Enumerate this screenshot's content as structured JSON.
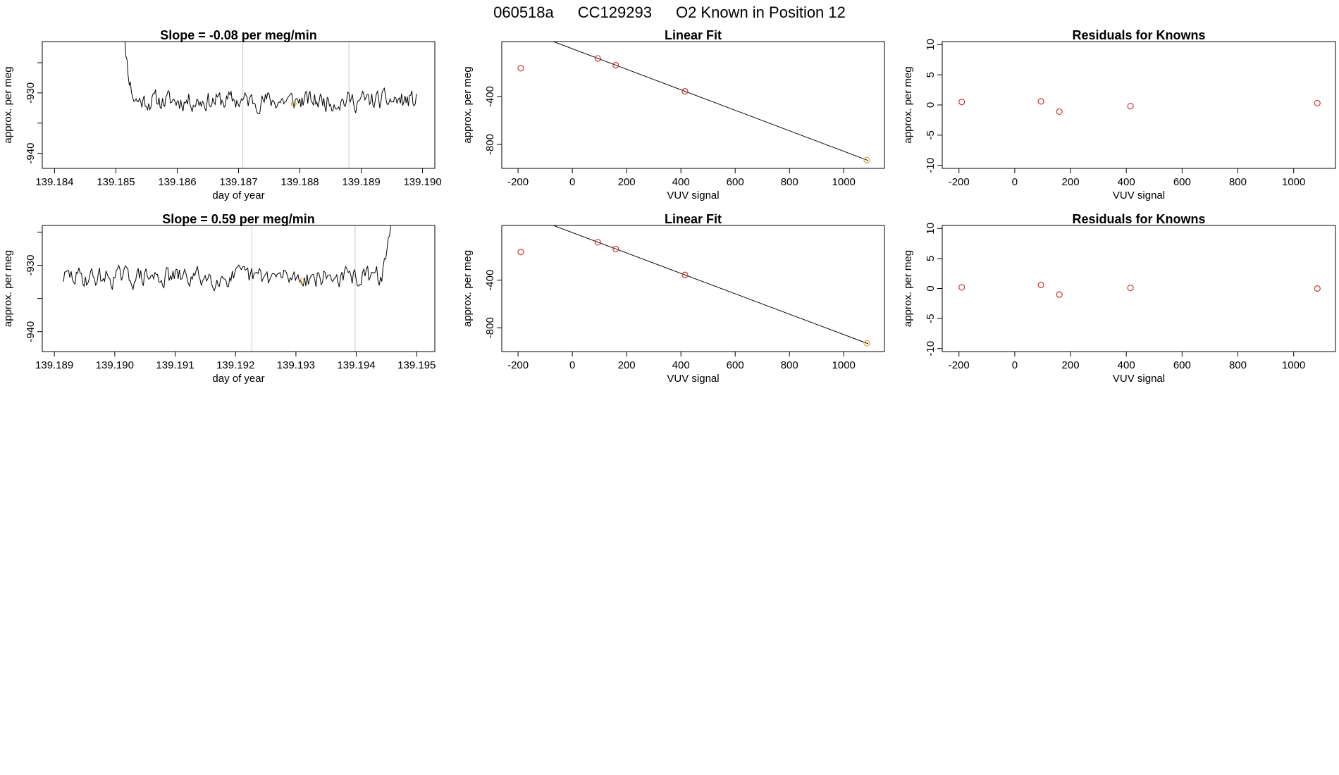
{
  "header": {
    "run_id": "060518a",
    "tank_id": "CC129293",
    "description": "O2 Known in Position  12"
  },
  "colors": {
    "trace": "#000000",
    "marker_orange": "#e6a23c",
    "marker_red": "#cc3333",
    "fit_line": "#000000",
    "guide_line": "#c8c8c8"
  },
  "chart_data": [
    {
      "id": "trace-1",
      "type": "line",
      "title": "Slope =  -0.08  per meg/min",
      "xlabel": "day of year",
      "ylabel": "approx. per meg",
      "xlim": [
        139.1838,
        139.1902
      ],
      "ylim": [
        -942.5,
        -921.5
      ],
      "xticks": [
        139.184,
        139.185,
        139.186,
        139.187,
        139.188,
        139.189,
        139.19
      ],
      "xtick_labels": [
        "139.184",
        "139.185",
        "139.186",
        "139.187",
        "139.188",
        "139.189",
        "139.190"
      ],
      "yticks": [
        -940,
        -935,
        -930,
        -925
      ],
      "ytick_labels": [
        "-940",
        "",
        "-930",
        ""
      ],
      "x_start": 139.18505,
      "x_end": 139.1899,
      "mean": -931.3,
      "noise": 1.6,
      "initial_offset": 12,
      "seed": 11,
      "vlines": [
        139.18707,
        139.1888
      ],
      "highlight": {
        "x": 139.1879,
        "y": -931.8
      }
    },
    {
      "id": "fit-1",
      "type": "scatter",
      "title": "Linear Fit",
      "xlabel": "VUV signal",
      "ylabel": "approx. per meg",
      "xlim": [
        -260,
        1150
      ],
      "ylim": [
        -1000,
        60
      ],
      "xticks": [
        -200,
        0,
        200,
        400,
        600,
        800,
        1000
      ],
      "yticks": [
        -800,
        -400
      ],
      "line": {
        "x0": -230,
        "x1": 1090,
        "slope": -0.8571,
        "intercept": 0
      },
      "x": [
        -190,
        94,
        160,
        415,
        1085
      ],
      "y": [
        -163,
        -81,
        -138,
        -356,
        -930
      ],
      "point_colors": [
        "red",
        "red",
        "red",
        "red",
        "orange"
      ]
    },
    {
      "id": "resid-1",
      "type": "scatter",
      "title": "Residuals for Knowns",
      "xlabel": "VUV signal",
      "ylabel": "approx. per meg",
      "xlim": [
        -260,
        1150
      ],
      "ylim": [
        -10.5,
        10.5
      ],
      "xticks": [
        -200,
        0,
        200,
        400,
        600,
        800,
        1000
      ],
      "yticks": [
        -10,
        -5,
        0,
        5,
        10
      ],
      "x": [
        -190,
        94,
        160,
        415,
        1085
      ],
      "y": [
        0.5,
        0.6,
        -1.1,
        -0.2,
        0.3
      ]
    },
    {
      "id": "trace-2",
      "type": "line",
      "title": "Slope =  0.59  per meg/min",
      "xlabel": "day of year",
      "ylabel": "approx. per meg",
      "xlim": [
        139.1888,
        139.1953
      ],
      "ylim": [
        -943.0,
        -924.0
      ],
      "xticks": [
        139.189,
        139.19,
        139.191,
        139.192,
        139.193,
        139.194,
        139.195
      ],
      "xtick_labels": [
        "139.189",
        "139.190",
        "139.191",
        "139.192",
        "139.193",
        "139.194",
        "139.195"
      ],
      "yticks": [
        -940,
        -935,
        -930,
        -925
      ],
      "ytick_labels": [
        "-940",
        "",
        "-930",
        ""
      ],
      "x_start": 139.18915,
      "x_end": 139.1947,
      "mean": -931.8,
      "noise": 1.5,
      "final_offset": 10,
      "seed": 29,
      "vlines": [
        139.19227,
        139.19398
      ],
      "highlight": {
        "x": 139.1931,
        "y": -932.4
      }
    },
    {
      "id": "fit-2",
      "type": "scatter",
      "title": "Linear Fit",
      "xlabel": "VUV signal",
      "ylabel": "approx. per meg",
      "xlim": [
        -260,
        1150
      ],
      "ylim": [
        -1000,
        60
      ],
      "xticks": [
        -200,
        0,
        200,
        400,
        600,
        800,
        1000
      ],
      "yticks": [
        -800,
        -400
      ],
      "line": {
        "x0": -230,
        "x1": 1090,
        "slope": -0.8571,
        "intercept": 0
      },
      "x": [
        -190,
        94,
        160,
        415,
        1085
      ],
      "y": [
        -163,
        -81,
        -138,
        -356,
        -930
      ],
      "point_colors": [
        "red",
        "red",
        "red",
        "red",
        "orange"
      ]
    },
    {
      "id": "resid-2",
      "type": "scatter",
      "title": "Residuals for Knowns",
      "xlabel": "VUV signal",
      "ylabel": "approx. per meg",
      "xlim": [
        -260,
        1150
      ],
      "ylim": [
        -10.5,
        10.5
      ],
      "xticks": [
        -200,
        0,
        200,
        400,
        600,
        800,
        1000
      ],
      "yticks": [
        -10,
        -5,
        0,
        5,
        10
      ],
      "x": [
        -190,
        94,
        160,
        415,
        1085
      ],
      "y": [
        0.2,
        0.6,
        -1.0,
        0.1,
        0.0
      ]
    }
  ]
}
